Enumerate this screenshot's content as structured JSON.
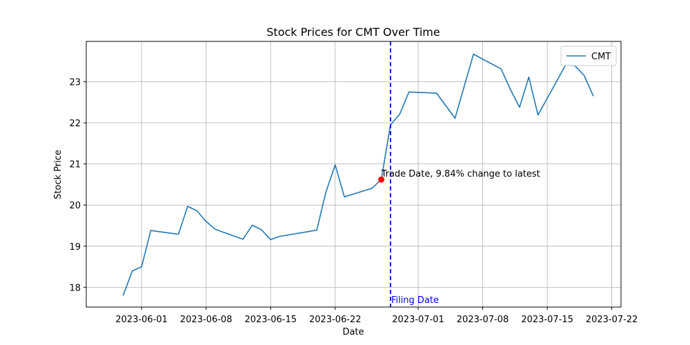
{
  "chart_data": {
    "type": "line",
    "title": "Stock Prices for CMT Over Time",
    "xlabel": "Date",
    "ylabel": "Stock Price",
    "xlim": [
      "2023-05-26",
      "2023-07-23"
    ],
    "ylim": [
      17.52,
      23.98
    ],
    "grid": true,
    "legend_placement": "top-right",
    "x_ticks": [
      "2023-06-01",
      "2023-06-08",
      "2023-06-15",
      "2023-06-22",
      "2023-07-01",
      "2023-07-08",
      "2023-07-15",
      "2023-07-22"
    ],
    "y_ticks": [
      18,
      19,
      20,
      21,
      22,
      23
    ],
    "series": [
      {
        "name": "CMT",
        "color": "#1f77b4",
        "x": [
          "2023-05-30",
          "2023-05-31",
          "2023-06-01",
          "2023-06-02",
          "2023-06-05",
          "2023-06-06",
          "2023-06-07",
          "2023-06-08",
          "2023-06-09",
          "2023-06-12",
          "2023-06-13",
          "2023-06-14",
          "2023-06-15",
          "2023-06-16",
          "2023-06-20",
          "2023-06-21",
          "2023-06-22",
          "2023-06-23",
          "2023-06-26",
          "2023-06-27",
          "2023-06-28",
          "2023-06-29",
          "2023-06-30",
          "2023-07-03",
          "2023-07-05",
          "2023-07-07",
          "2023-07-10",
          "2023-07-11",
          "2023-07-12",
          "2023-07-13",
          "2023-07-14",
          "2023-07-17",
          "2023-07-18",
          "2023-07-19",
          "2023-07-20"
        ],
        "y": [
          17.8,
          18.4,
          18.5,
          19.38,
          19.29,
          19.97,
          19.86,
          19.6,
          19.41,
          19.17,
          19.51,
          19.4,
          19.16,
          19.24,
          19.39,
          20.32,
          20.98,
          20.2,
          20.41,
          20.62,
          21.95,
          22.21,
          22.75,
          22.72,
          22.11,
          23.67,
          23.31,
          22.81,
          22.38,
          23.11,
          22.19,
          23.41,
          23.39,
          23.15,
          22.65
        ]
      }
    ],
    "annotations": {
      "trade_point": {
        "x": "2023-06-27",
        "y": 20.62,
        "color": "#ff0000",
        "text": "Trade Date, 9.84% change to latest"
      },
      "filing_line": {
        "x": "2023-06-28",
        "color": "#0000cc",
        "text": "Filing Date"
      }
    }
  }
}
